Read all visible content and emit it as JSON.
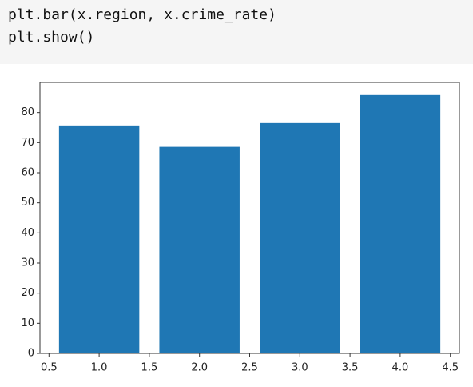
{
  "code": [
    "plt.bar(x.region, x.crime_rate)",
    "plt.show()"
  ],
  "chart_data": {
    "type": "bar",
    "x": [
      1,
      2,
      3,
      4
    ],
    "values": [
      75.7,
      68.6,
      76.5,
      85.8
    ],
    "color": "#1f77b4",
    "xlim": [
      0.41,
      4.59
    ],
    "xticks": [
      0.5,
      {
        "value": 1,
        "label": "1.0"
      },
      1.5,
      {
        "value": 2,
        "label": "2.0"
      },
      2.5,
      {
        "value": 3,
        "label": "3.0"
      },
      3.5,
      {
        "value": 4,
        "label": "4.0"
      },
      4.5
    ],
    "ylim": [
      0,
      90
    ],
    "yticks": [
      0,
      10,
      20,
      30,
      40,
      50,
      60,
      70,
      80
    ]
  }
}
